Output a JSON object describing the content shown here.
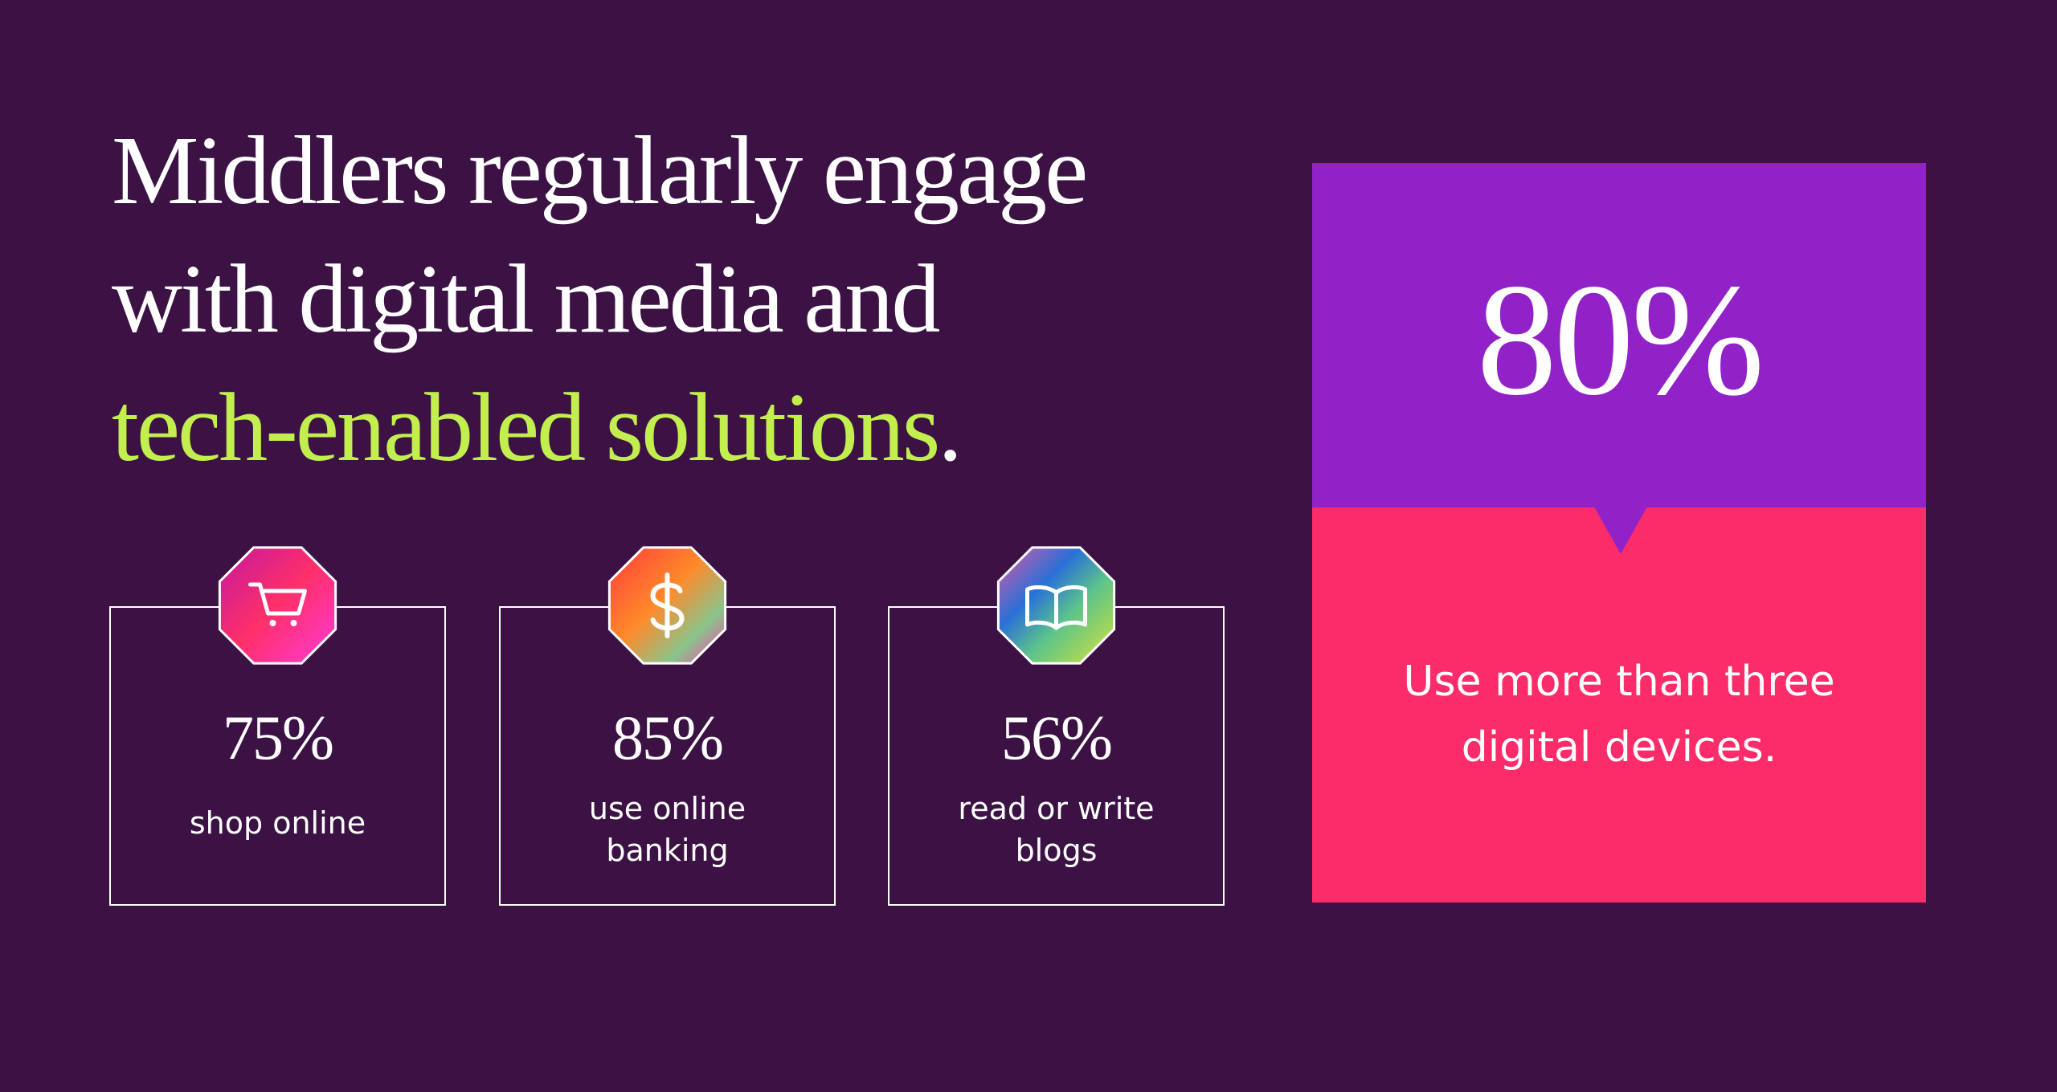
{
  "headline": {
    "lines": [
      "Middlers regularly engage",
      "with digital media and"
    ],
    "highlight": "tech-enabled solutions",
    "end": "."
  },
  "stats": [
    {
      "value": "75%",
      "label": [
        "shop online"
      ]
    },
    {
      "value": "85%",
      "label": [
        "use online",
        "banking"
      ]
    },
    {
      "value": "56%",
      "label": [
        "read or write",
        "blogs"
      ]
    }
  ],
  "feature": {
    "value": "80%",
    "label": [
      "Use more than three",
      "digital devices."
    ]
  }
}
